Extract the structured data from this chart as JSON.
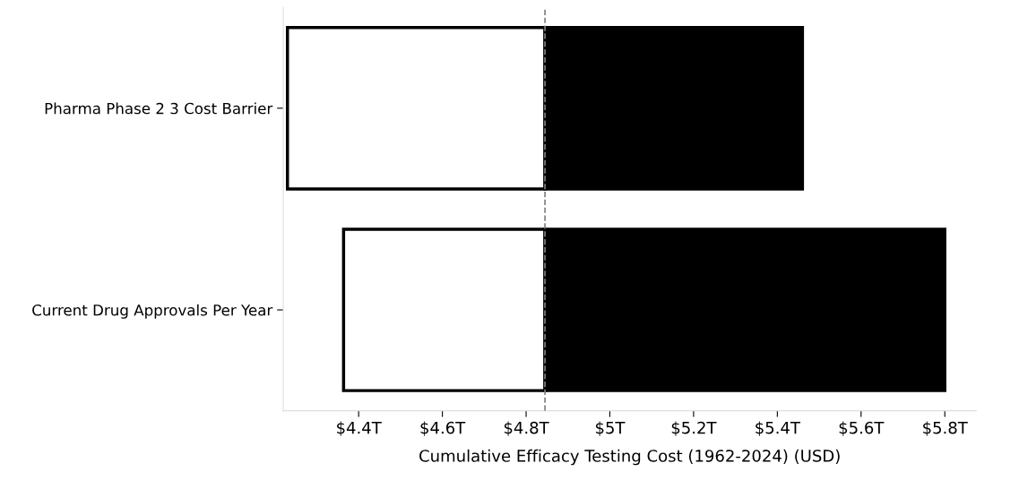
{
  "chart_data": {
    "type": "bar",
    "orientation": "horizontal",
    "xlabel": "Cumulative Efficacy Testing Cost (1962-2024) (USD)",
    "categories": [
      "Pharma Phase 2 3 Cost Barrier",
      "Current Drug Approvals Per Year"
    ],
    "series": [
      {
        "color": "#ffffff",
        "base": [
          4.23,
          4.364
        ],
        "values": [
          0.615,
          0.481
        ]
      },
      {
        "color": "#000000",
        "base": [
          4.845,
          4.845
        ],
        "values": [
          0.615,
          0.955
        ]
      }
    ],
    "xlim": [
      4.22,
      5.875
    ],
    "xticks": [
      {
        "value": 4.4,
        "label": "$4.4T"
      },
      {
        "value": 4.6,
        "label": "$4.6T"
      },
      {
        "value": 4.8,
        "label": "$4.8T"
      },
      {
        "value": 5.0,
        "label": "$5T"
      },
      {
        "value": 5.2,
        "label": "$5.2T"
      },
      {
        "value": 5.4,
        "label": "$5.4T"
      },
      {
        "value": 5.6,
        "label": "$5.6T"
      },
      {
        "value": 5.8,
        "label": "$5.8T"
      }
    ],
    "ref_lines": [
      {
        "axis": "x",
        "value": 4.845,
        "color": "#808080",
        "line_style": "dashed"
      }
    ],
    "grid": false,
    "legend": false
  }
}
